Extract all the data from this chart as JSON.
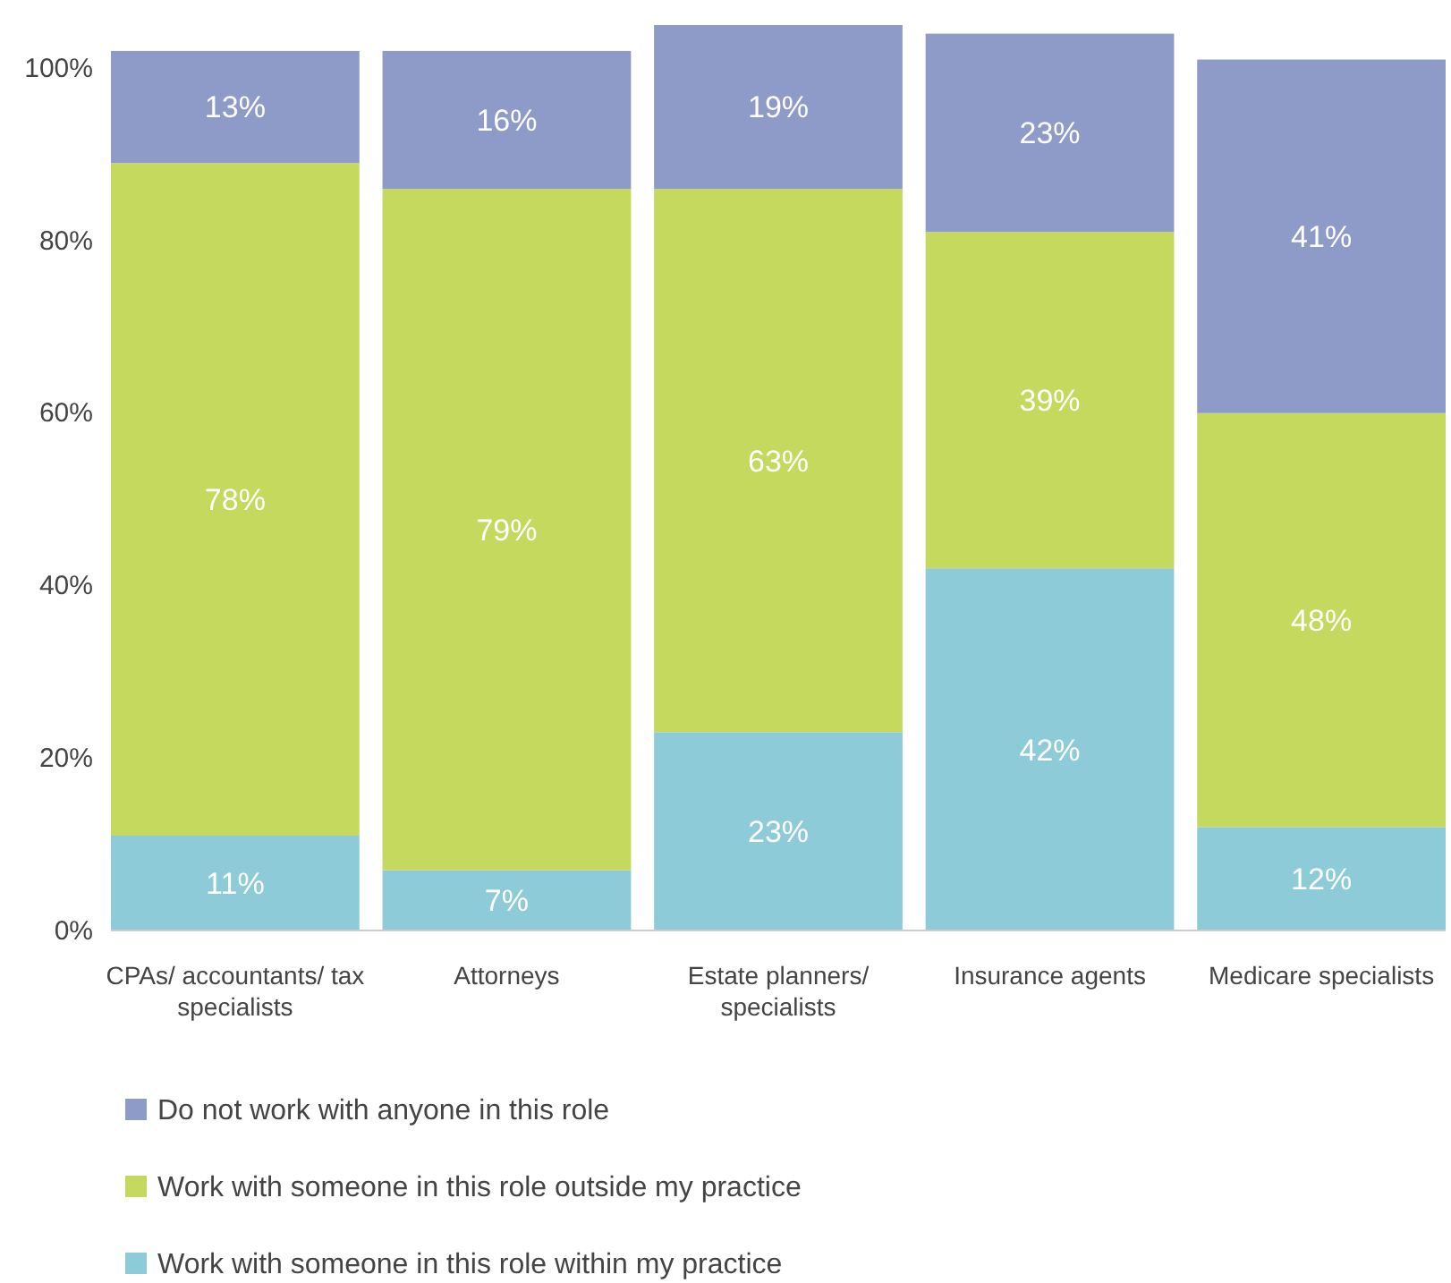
{
  "chart_data": {
    "type": "bar",
    "stacked": true,
    "categories": [
      "CPAs/ accountants/ tax specialists",
      "Attorneys",
      "Estate planners/ specialists",
      "Insurance agents",
      "Medicare specialists"
    ],
    "series": [
      {
        "name": "Work with someone in this role within my practice",
        "color": "#8ecbd9",
        "values": [
          11,
          7,
          23,
          42,
          12
        ],
        "value_labels": [
          "11%",
          "7%",
          "23%",
          "42%",
          "12%"
        ]
      },
      {
        "name": "Work with someone in this role outside my practice",
        "color": "#c5d95e",
        "values": [
          78,
          79,
          63,
          39,
          48
        ],
        "value_labels": [
          "78%",
          "79%",
          "63%",
          "39%",
          "48%"
        ]
      },
      {
        "name": "Do not work with anyone in this role",
        "color": "#8e9ac8",
        "values": [
          13,
          16,
          19,
          23,
          41
        ],
        "value_labels": [
          "13%",
          "16%",
          "19%",
          "23%",
          "41%"
        ]
      }
    ],
    "ylim": [
      0,
      105
    ],
    "yticks": [
      {
        "value": 0,
        "label": "0%"
      },
      {
        "value": 20,
        "label": "20%"
      },
      {
        "value": 40,
        "label": "40%"
      },
      {
        "value": 60,
        "label": "60%"
      },
      {
        "value": 80,
        "label": "80%"
      },
      {
        "value": 100,
        "label": "100%"
      }
    ],
    "legend": "bottom",
    "grid": false
  }
}
